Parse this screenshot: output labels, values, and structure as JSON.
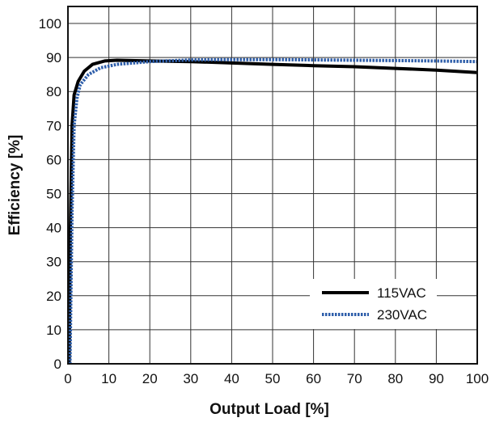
{
  "chart_data": {
    "type": "line",
    "xlabel": "Output Load [%]",
    "ylabel": "Efficiency [%]",
    "xlim": [
      0,
      100
    ],
    "ylim": [
      0,
      105
    ],
    "x_ticks": [
      0,
      10,
      20,
      30,
      40,
      50,
      60,
      70,
      80,
      90,
      100
    ],
    "y_ticks": [
      0,
      10,
      20,
      30,
      40,
      50,
      60,
      70,
      80,
      90,
      100
    ],
    "grid": true,
    "legend_position": "bottom-right",
    "series": [
      {
        "name": "115VAC",
        "color": "#000000",
        "style": "solid",
        "points": [
          [
            0.3,
            0
          ],
          [
            0.6,
            40
          ],
          [
            1,
            70
          ],
          [
            1.5,
            79
          ],
          [
            2.5,
            83
          ],
          [
            4,
            86
          ],
          [
            6,
            88
          ],
          [
            9,
            89
          ],
          [
            12,
            89.2
          ],
          [
            20,
            89
          ],
          [
            30,
            88.8
          ],
          [
            40,
            88.4
          ],
          [
            50,
            88
          ],
          [
            60,
            87.6
          ],
          [
            70,
            87.3
          ],
          [
            80,
            86.8
          ],
          [
            90,
            86.3
          ],
          [
            100,
            85.6
          ]
        ]
      },
      {
        "name": "230VAC",
        "color": "#2e5eaa",
        "style": "dotted",
        "points": [
          [
            0.5,
            0
          ],
          [
            1,
            45
          ],
          [
            1.5,
            70
          ],
          [
            2.2,
            78
          ],
          [
            3,
            82
          ],
          [
            5,
            85
          ],
          [
            8,
            87
          ],
          [
            12,
            88
          ],
          [
            20,
            88.8
          ],
          [
            30,
            89.3
          ],
          [
            40,
            89.4
          ],
          [
            50,
            89.4
          ],
          [
            60,
            89.3
          ],
          [
            70,
            89.2
          ],
          [
            80,
            89.1
          ],
          [
            90,
            89
          ],
          [
            100,
            88.8
          ]
        ]
      }
    ]
  }
}
